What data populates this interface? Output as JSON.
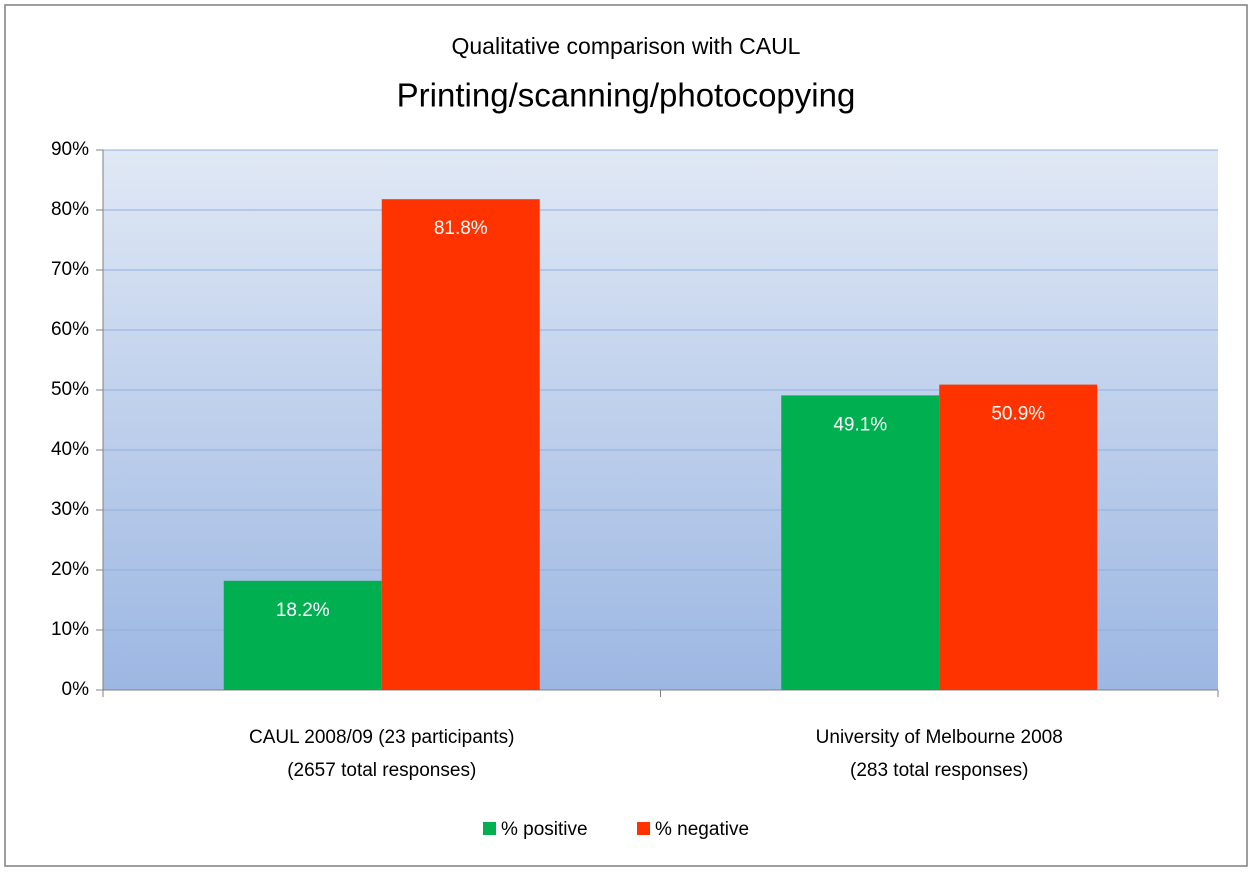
{
  "chart_data": {
    "type": "bar",
    "title": "Qualitative comparison with CAUL",
    "subtitle": "Printing/scanning/photocopying",
    "categories": [
      [
        "CAUL 2008/09 (23 participants)",
        "(2657 total responses)"
      ],
      [
        "University of Melbourne 2008",
        "(283 total responses)"
      ]
    ],
    "series": [
      {
        "name": "% positive",
        "color": "#00b050",
        "values": [
          18.2,
          49.1
        ],
        "value_labels": [
          "18.2%",
          "49.1%"
        ]
      },
      {
        "name": "% negative",
        "color": "#ff3300",
        "values": [
          81.8,
          50.9
        ],
        "value_labels": [
          "81.8%",
          "50.9%"
        ]
      }
    ],
    "ylim": [
      0,
      90
    ],
    "yticks": [
      {
        "value": 0,
        "label": "0%"
      },
      {
        "value": 10,
        "label": "10%"
      },
      {
        "value": 20,
        "label": "20%"
      },
      {
        "value": 30,
        "label": "30%"
      },
      {
        "value": 40,
        "label": "40%"
      },
      {
        "value": 50,
        "label": "50%"
      },
      {
        "value": 60,
        "label": "60%"
      },
      {
        "value": 70,
        "label": "70%"
      },
      {
        "value": 80,
        "label": "80%"
      },
      {
        "value": 90,
        "label": "90%"
      }
    ],
    "grid": true,
    "legend": "bottom"
  }
}
